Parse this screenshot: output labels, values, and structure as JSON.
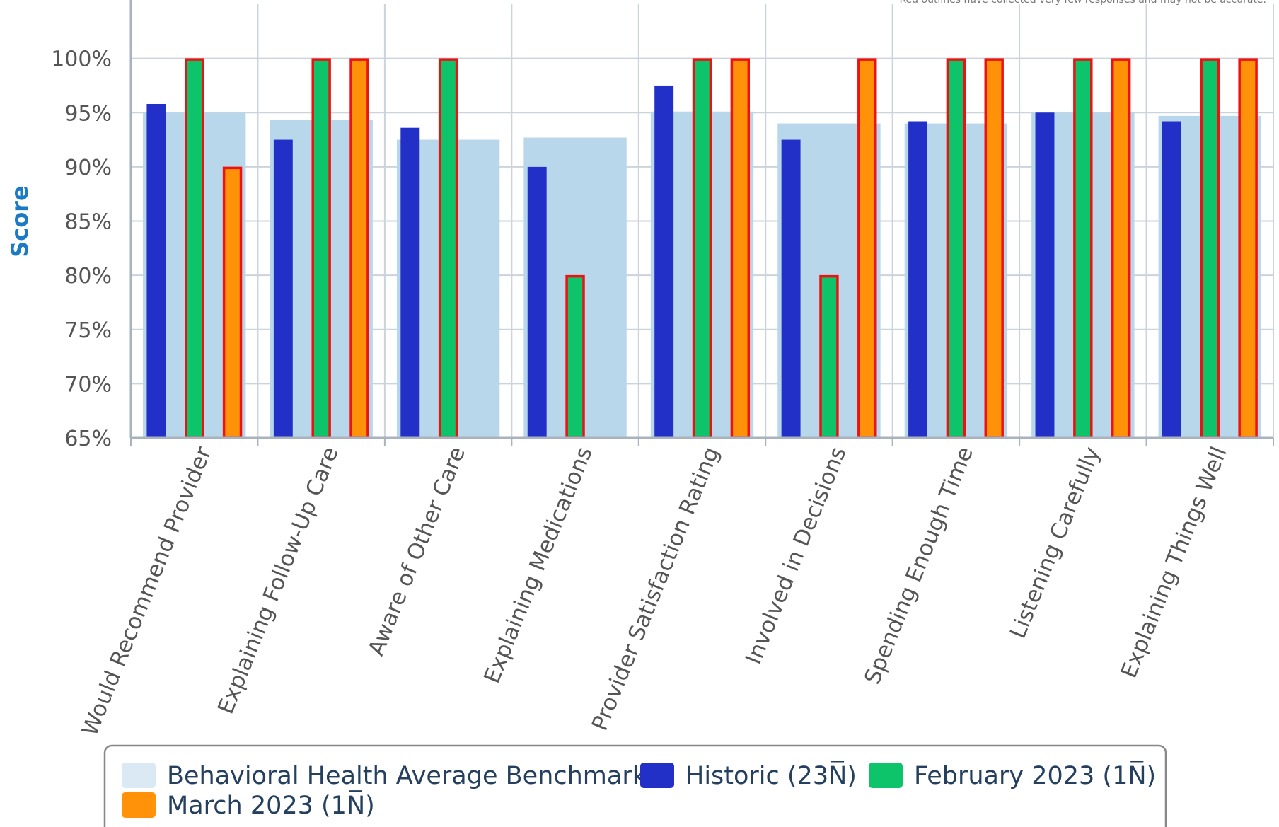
{
  "chart_data": {
    "type": "bar",
    "note": "Red outlines have collected very few responses and may not be accurate.",
    "ylabel": "Score",
    "xlabel": "",
    "ylim": [
      65,
      105
    ],
    "yticks": [
      "65%",
      "70%",
      "75%",
      "80%",
      "85%",
      "90%",
      "95%",
      "100%"
    ],
    "ytick_values": [
      65,
      70,
      75,
      80,
      85,
      90,
      95,
      100
    ],
    "grid": true,
    "legend_placement": "bottom",
    "categories": [
      "Would Recommend Provider",
      "Explaining Follow-Up Care",
      "Aware of Other Care",
      "Explaining Medications",
      "Provider Satisfaction Rating",
      "Involved in Decisions",
      "Spending Enough Time",
      "Listening Carefully",
      "Explaining Things Well"
    ],
    "benchmark": {
      "name": "Behavioral Health Average Benchmark",
      "color": "#b9d7ea",
      "values": [
        95.0,
        94.3,
        92.5,
        92.7,
        95.1,
        94.0,
        94.0,
        95.0,
        94.7
      ]
    },
    "series": [
      {
        "name": "Historic (23N̅)",
        "color": "#2330c8",
        "outlined": false,
        "values": [
          95.8,
          92.5,
          93.6,
          90.0,
          97.5,
          92.5,
          94.2,
          95.0,
          94.2
        ]
      },
      {
        "name": "February 2023 (1N̅)",
        "color": "#0ec46a",
        "outlined": true,
        "values": [
          100,
          100,
          100,
          80,
          100,
          80,
          100,
          100,
          100
        ]
      },
      {
        "name": "March 2023 (1N̅)",
        "color": "#ff9208",
        "outlined": true,
        "values": [
          90,
          100,
          null,
          null,
          100,
          100,
          100,
          100,
          100
        ]
      }
    ],
    "outline_color": "#ee1111"
  }
}
